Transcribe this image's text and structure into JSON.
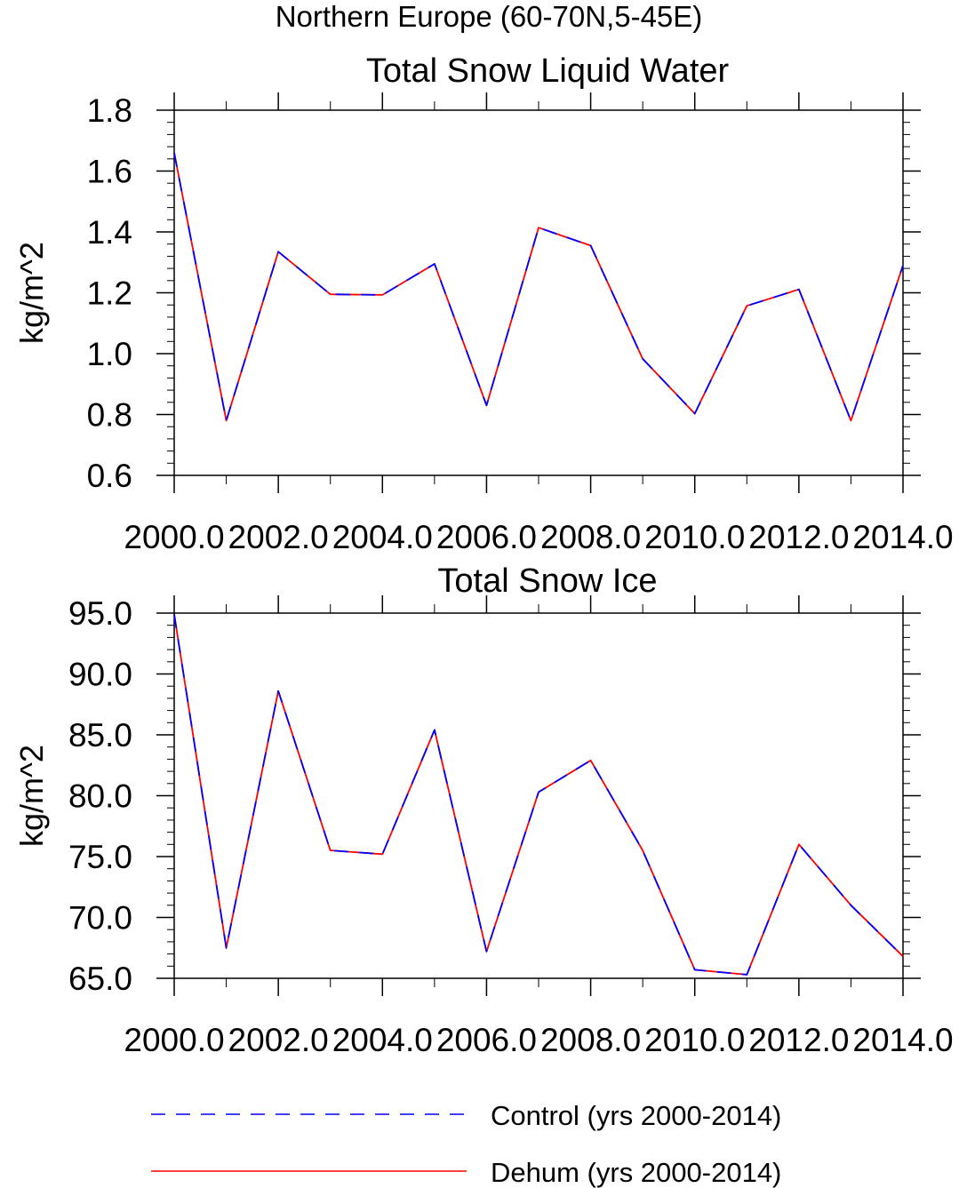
{
  "figure": {
    "suptitle": "Northern Europe (60-70N,5-45E)"
  },
  "colors": {
    "control": "#0000ff",
    "dehum": "#ff0000",
    "axis": "#000000"
  },
  "chart_data": [
    {
      "type": "line",
      "title": "Total Snow Liquid Water",
      "xlabel": "",
      "ylabel": "kg/m^2",
      "xlim": [
        2000,
        2014
      ],
      "ylim": [
        0.6,
        1.8
      ],
      "xticks": [
        2000,
        2002,
        2004,
        2006,
        2008,
        2010,
        2012,
        2014
      ],
      "xtick_labels": [
        "2000.0",
        "2002.0",
        "2004.0",
        "2006.0",
        "2008.0",
        "2010.0",
        "2012.0",
        "2014.0"
      ],
      "yticks": [
        0.6,
        0.8,
        1.0,
        1.2,
        1.4,
        1.6,
        1.8
      ],
      "ytick_labels": [
        "0.6",
        "0.8",
        "1.0",
        "1.2",
        "1.4",
        "1.6",
        "1.8"
      ],
      "yminor_step": 0.04,
      "x": [
        2000,
        2001,
        2002,
        2003,
        2004,
        2005,
        2006,
        2007,
        2008,
        2009,
        2010,
        2011,
        2012,
        2013,
        2014
      ],
      "series": [
        {
          "name": "Control (yrs 2000-2014)",
          "style": "dashed",
          "values": [
            1.66,
            0.78,
            1.335,
            1.195,
            1.193,
            1.295,
            0.83,
            1.414,
            1.355,
            0.983,
            0.803,
            1.157,
            1.211,
            0.78,
            1.29
          ]
        },
        {
          "name": "Dehum (yrs 2000-2014)",
          "style": "solid",
          "values": [
            1.66,
            0.78,
            1.335,
            1.195,
            1.193,
            1.295,
            0.83,
            1.414,
            1.355,
            0.983,
            0.803,
            1.157,
            1.211,
            0.78,
            1.29
          ]
        }
      ]
    },
    {
      "type": "line",
      "title": "Total Snow Ice",
      "xlabel": "",
      "ylabel": "kg/m^2",
      "xlim": [
        2000,
        2014
      ],
      "ylim": [
        65,
        95
      ],
      "xticks": [
        2000,
        2002,
        2004,
        2006,
        2008,
        2010,
        2012,
        2014
      ],
      "xtick_labels": [
        "2000.0",
        "2002.0",
        "2004.0",
        "2006.0",
        "2008.0",
        "2010.0",
        "2012.0",
        "2014.0"
      ],
      "yticks": [
        65,
        70,
        75,
        80,
        85,
        90,
        95
      ],
      "ytick_labels": [
        "65.0",
        "70.0",
        "75.0",
        "80.0",
        "85.0",
        "90.0",
        "95.0"
      ],
      "yminor_step": 1,
      "x": [
        2000,
        2001,
        2002,
        2003,
        2004,
        2005,
        2006,
        2007,
        2008,
        2009,
        2010,
        2011,
        2012,
        2013,
        2014
      ],
      "series": [
        {
          "name": "Control (yrs 2000-2014)",
          "style": "dashed",
          "values": [
            94.9,
            67.5,
            88.6,
            75.5,
            75.2,
            85.4,
            67.2,
            80.3,
            82.9,
            75.5,
            65.7,
            65.3,
            76.0,
            71.0,
            66.8
          ]
        },
        {
          "name": "Dehum (yrs 2000-2014)",
          "style": "solid",
          "values": [
            94.9,
            67.5,
            88.6,
            75.5,
            75.2,
            85.4,
            67.2,
            80.3,
            82.9,
            75.5,
            65.7,
            65.3,
            76.0,
            71.0,
            66.8
          ]
        }
      ]
    }
  ],
  "legend": {
    "items": [
      {
        "label": "Control (yrs 2000-2014)",
        "style": "dashed",
        "color": "#0000ff"
      },
      {
        "label": "Dehum (yrs 2000-2014)",
        "style": "solid",
        "color": "#ff0000"
      }
    ]
  }
}
